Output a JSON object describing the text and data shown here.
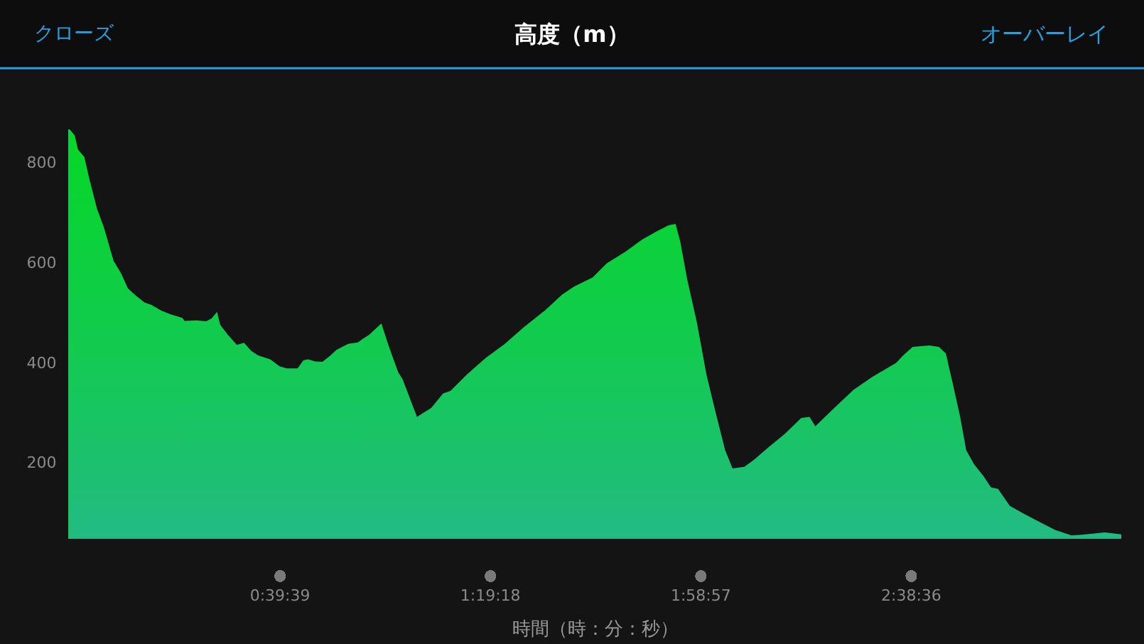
{
  "chart_data": {
    "type": "area",
    "title": "高度（m）",
    "xlabel": "時間（時：分：秒）",
    "annotations": [
      "クローズ",
      "オーバーレイ"
    ],
    "color": "#05d826",
    "x": [
      0,
      0.016,
      0.026,
      0.046,
      0.063,
      0.086,
      0.108,
      0.138,
      0.161,
      0.183,
      0.205,
      0.235,
      0.257,
      0.287,
      0.317,
      0.354,
      0.361,
      0.399,
      0.429,
      0.446,
      0.463,
      0.473,
      0.496,
      0.525,
      0.548,
      0.57,
      0.592,
      0.63,
      0.66,
      0.682,
      0.716,
      0.734,
      0.749,
      0.771,
      0.794,
      0.816,
      0.838,
      0.875,
      0.905,
      0.942,
      0.979,
      1.002,
      1.032,
      1.046,
      1.091,
      1.136,
      1.173,
      1.196,
      1.248,
      1.307,
      1.367,
      1.426,
      1.493,
      1.546,
      1.583,
      1.643,
      1.687,
      1.747,
      1.799,
      1.844,
      1.881,
      1.903,
      1.918,
      1.94,
      1.97,
      2.0,
      2.029,
      2.059,
      2.082,
      2.119,
      2.149,
      2.193,
      2.246,
      2.298,
      2.324,
      2.342,
      2.402,
      2.462,
      2.521,
      2.596,
      2.618,
      2.648,
      2.7,
      2.73,
      2.752,
      2.774,
      2.797,
      2.816,
      2.841,
      2.871,
      2.894,
      2.916,
      2.953,
      2.998,
      3.043,
      3.095,
      3.147,
      3.191,
      3.251,
      3.303
    ],
    "values": [
      866,
      854,
      826,
      811,
      764,
      707,
      669,
      603,
      579,
      548,
      535,
      520,
      515,
      504,
      496,
      489,
      483,
      484,
      482,
      488,
      501,
      475,
      456,
      435,
      439,
      423,
      414,
      406,
      392,
      388,
      388,
      404,
      406,
      402,
      401,
      412,
      425,
      437,
      440,
      456,
      478,
      433,
      380,
      366,
      291,
      309,
      338,
      343,
      376,
      409,
      437,
      470,
      504,
      535,
      551,
      570,
      598,
      622,
      646,
      662,
      674,
      677,
      641,
      565,
      480,
      376,
      300,
      224,
      188,
      191,
      205,
      229,
      257,
      289,
      291,
      272,
      309,
      345,
      371,
      399,
      414,
      431,
      434,
      431,
      418,
      357,
      291,
      224,
      196,
      172,
      150,
      147,
      113,
      97,
      82,
      65,
      54,
      56,
      60,
      56
    ],
    "xlim": [
      0,
      3.303
    ],
    "xticks": [
      {
        "value": 0.660833,
        "label": "0:39:39"
      },
      {
        "value": 1.321667,
        "label": "1:19:18"
      },
      {
        "value": 1.9825,
        "label": "1:58:57"
      },
      {
        "value": 2.643333,
        "label": "2:38:36"
      }
    ],
    "ylim": [
      50,
      866
    ],
    "yticks": [
      200,
      400,
      600,
      800
    ]
  }
}
